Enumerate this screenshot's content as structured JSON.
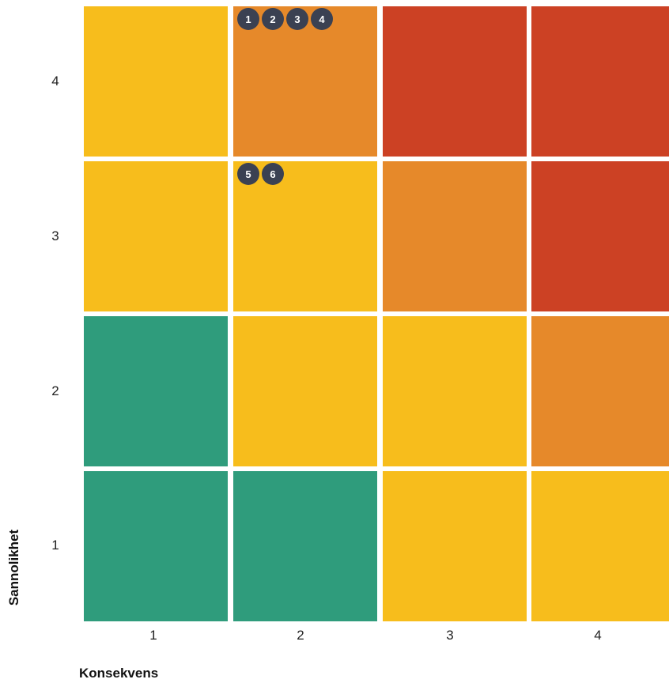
{
  "chart_data": {
    "type": "heatmap",
    "title": "",
    "xlabel": "Konsekvens",
    "ylabel": "Sannolikhet",
    "x_categories": [
      "1",
      "2",
      "3",
      "4"
    ],
    "y_categories": [
      "1",
      "2",
      "3",
      "4"
    ],
    "levels": {
      "green": "#2f9c7c",
      "yellow": "#f7bd1c",
      "orange": "#e6892a",
      "red": "#cc4124"
    },
    "cells": [
      {
        "x": "1",
        "y": "4",
        "level": "yellow"
      },
      {
        "x": "2",
        "y": "4",
        "level": "orange"
      },
      {
        "x": "3",
        "y": "4",
        "level": "red"
      },
      {
        "x": "4",
        "y": "4",
        "level": "red"
      },
      {
        "x": "1",
        "y": "3",
        "level": "yellow"
      },
      {
        "x": "2",
        "y": "3",
        "level": "yellow"
      },
      {
        "x": "3",
        "y": "3",
        "level": "orange"
      },
      {
        "x": "4",
        "y": "3",
        "level": "red"
      },
      {
        "x": "1",
        "y": "2",
        "level": "green"
      },
      {
        "x": "2",
        "y": "2",
        "level": "yellow"
      },
      {
        "x": "3",
        "y": "2",
        "level": "yellow"
      },
      {
        "x": "4",
        "y": "2",
        "level": "orange"
      },
      {
        "x": "1",
        "y": "1",
        "level": "green"
      },
      {
        "x": "2",
        "y": "1",
        "level": "green"
      },
      {
        "x": "3",
        "y": "1",
        "level": "yellow"
      },
      {
        "x": "4",
        "y": "1",
        "level": "yellow"
      }
    ],
    "markers": [
      {
        "label": "1",
        "x": "2",
        "y": "4"
      },
      {
        "label": "2",
        "x": "2",
        "y": "4"
      },
      {
        "label": "3",
        "x": "2",
        "y": "4"
      },
      {
        "label": "4",
        "x": "2",
        "y": "4"
      },
      {
        "label": "5",
        "x": "2",
        "y": "3"
      },
      {
        "label": "6",
        "x": "2",
        "y": "3"
      }
    ],
    "marker_color": "#3b4152"
  }
}
